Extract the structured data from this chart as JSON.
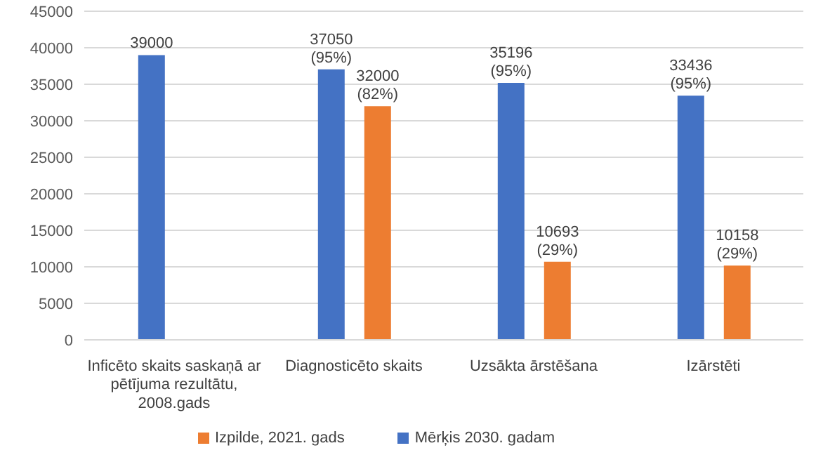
{
  "chart_data": {
    "type": "bar",
    "categories": [
      "Inficēto skaits saskaņā ar pētījuma rezultātu, 2008.gads",
      "Diagnosticēto skaits",
      "Uzsākta ārstēšana",
      "Izārstēti"
    ],
    "series": [
      {
        "name": "Mērķis 2030. gadam",
        "color": "#4472c4",
        "values": [
          39000,
          37050,
          35196,
          33436
        ],
        "value_labels": [
          "39000",
          "37050\n(95%)",
          "35196\n(95%)",
          "33436\n(95%)"
        ]
      },
      {
        "name": "Izpilde, 2021. gads",
        "color": "#ed7d31",
        "values": [
          null,
          32000,
          10693,
          10158
        ],
        "value_labels": [
          null,
          "32000\n(82%)",
          "10693\n(29%)",
          "10158\n(29%)"
        ]
      }
    ],
    "ylim": [
      0,
      45000
    ],
    "yticks": [
      0,
      5000,
      10000,
      15000,
      20000,
      25000,
      30000,
      35000,
      40000,
      45000
    ],
    "grid": "y",
    "legend": "bottom"
  }
}
